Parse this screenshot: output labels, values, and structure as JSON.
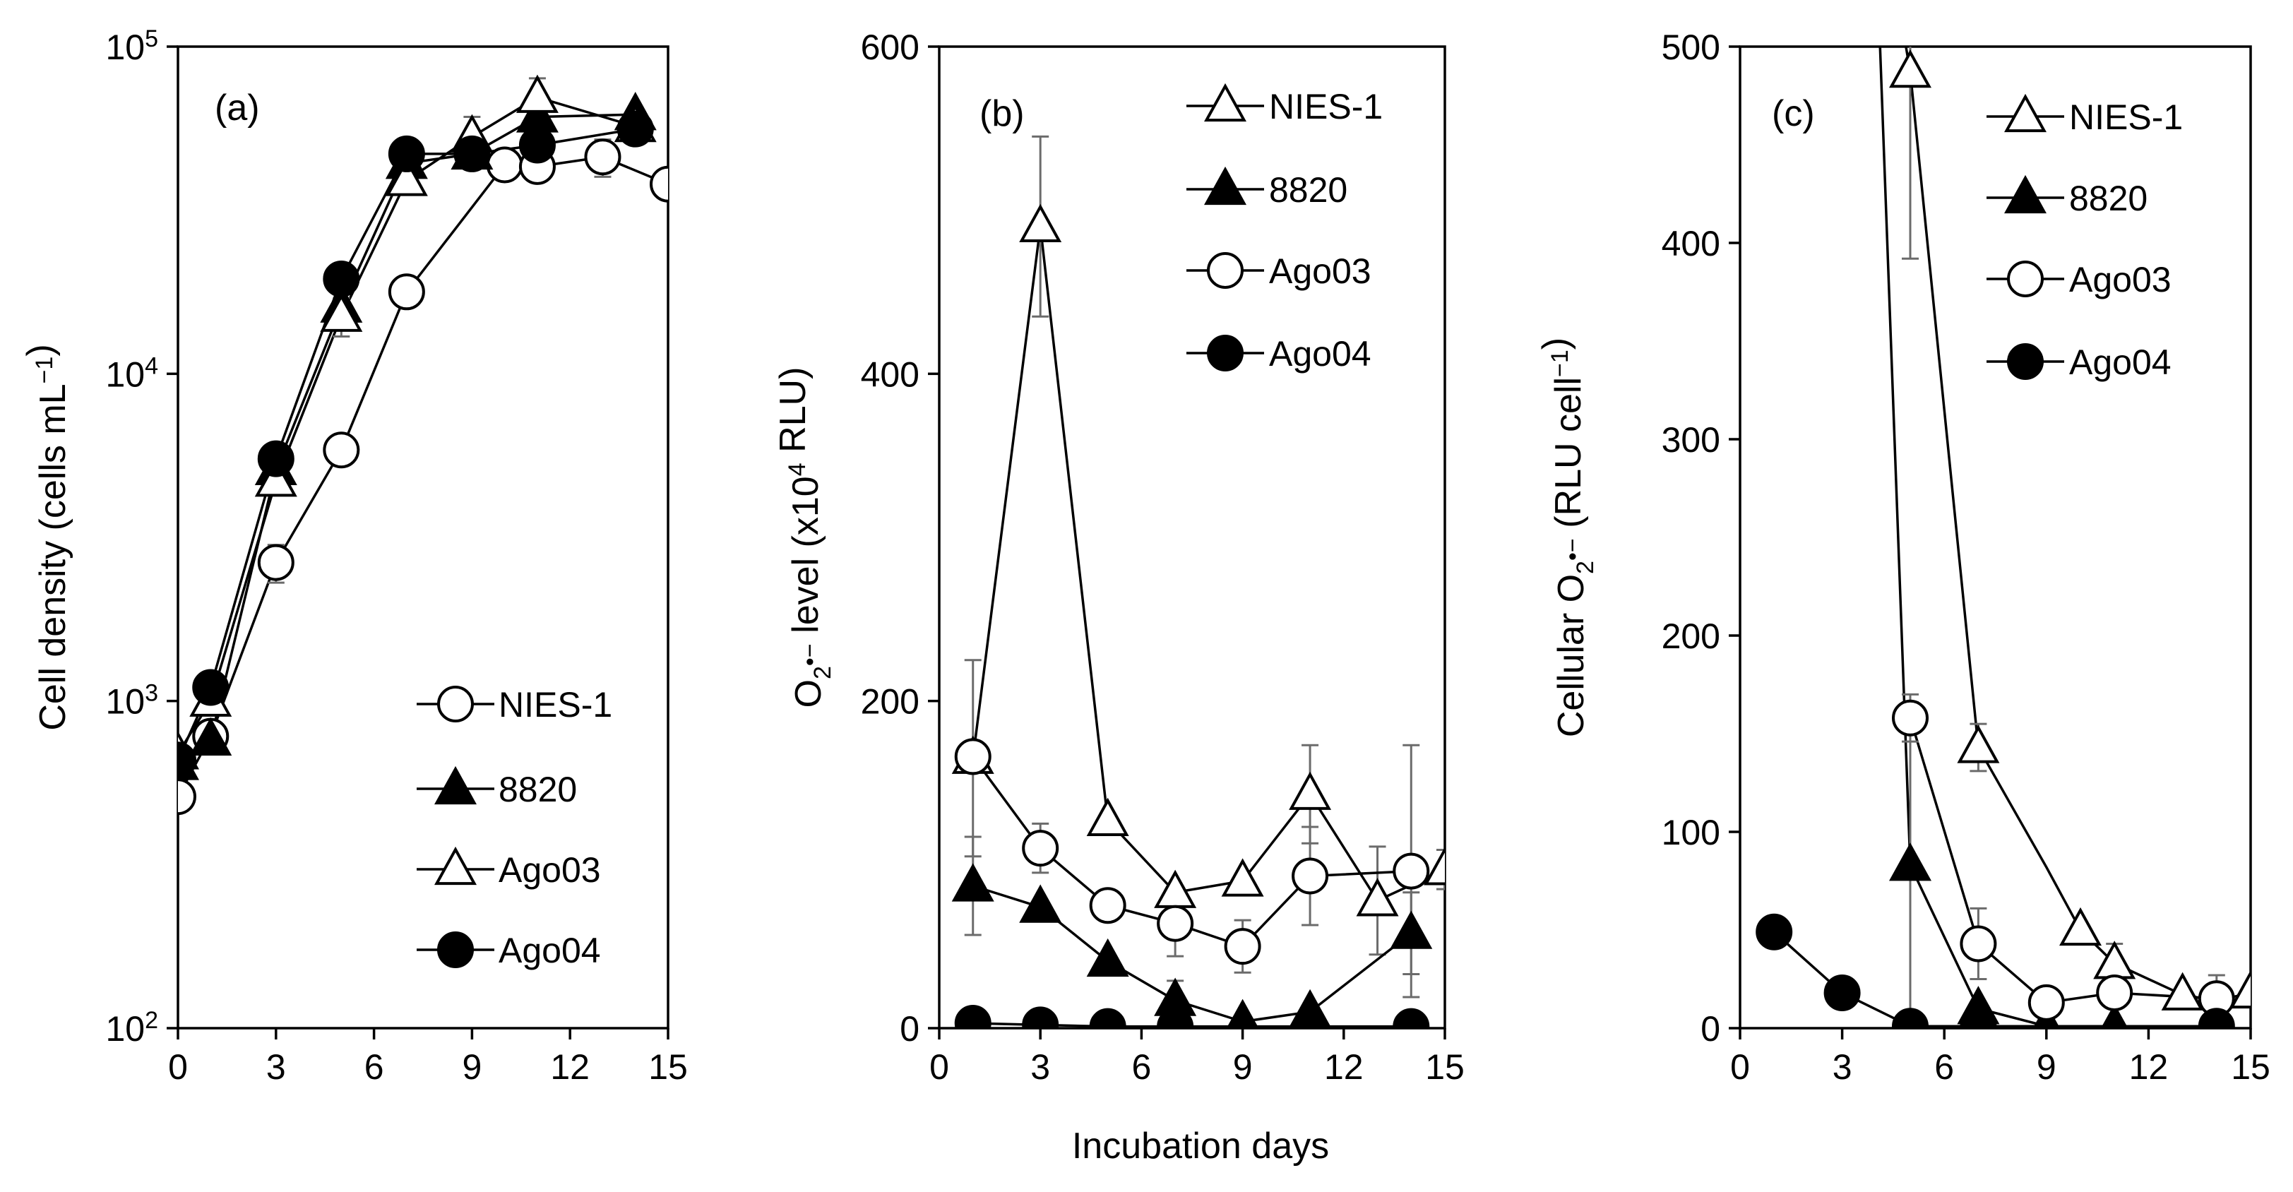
{
  "figure": {
    "shared_xlabel": "Incubation days"
  },
  "chart_data": [
    {
      "type": "line",
      "panel_label": "(a)",
      "yscale": "log",
      "ylim": [
        100,
        100000
      ],
      "xlim": [
        0,
        15
      ],
      "xticks": [
        "0",
        "3",
        "6",
        "9",
        "12",
        "15"
      ],
      "yticks": [
        {
          "base": "10",
          "exp": "2"
        },
        {
          "base": "10",
          "exp": "3"
        },
        {
          "base": "10",
          "exp": "4"
        },
        {
          "base": "10",
          "exp": "5"
        }
      ],
      "ylabel": {
        "text": "Cell density (cells mL",
        "sup": "−1",
        "end": ")"
      },
      "legend": [
        {
          "label": "NIES-1",
          "marker": "circle-open"
        },
        {
          "label": "8820",
          "marker": "triangle-filled"
        },
        {
          "label": "Ago03",
          "marker": "triangle-open"
        },
        {
          "label": "Ago04",
          "marker": "circle-filled"
        }
      ],
      "series": [
        {
          "name": "NIES-1",
          "marker": "circle-open",
          "x": [
            0,
            1,
            3,
            5,
            7,
            10,
            11,
            13,
            15
          ],
          "y": [
            510,
            780,
            2650,
            5850,
            17800,
            43500,
            43000,
            46000,
            38000
          ],
          "err": [
            0,
            0,
            350,
            0,
            0,
            0,
            0,
            6000,
            0
          ]
        },
        {
          "name": "8820",
          "marker": "triangle-filled",
          "x": [
            0,
            1,
            3,
            5,
            7,
            9,
            11,
            14
          ],
          "y": [
            640,
            760,
            5100,
            16000,
            44000,
            47000,
            61000,
            62000
          ],
          "err": [
            0,
            0,
            0,
            0,
            0,
            0,
            0,
            0
          ]
        },
        {
          "name": "Ago03",
          "marker": "triangle-open",
          "x": [
            0,
            1,
            3,
            5,
            7,
            9,
            11,
            14
          ],
          "y": [
            690,
            1000,
            4700,
            15000,
            39000,
            53000,
            70000,
            57000
          ],
          "err": [
            0,
            0,
            0,
            2000,
            0,
            8000,
            10000,
            0
          ]
        },
        {
          "name": "Ago04",
          "marker": "circle-filled",
          "x": [
            0,
            1,
            3,
            5,
            7,
            9,
            11,
            14
          ],
          "y": [
            660,
            1100,
            5500,
            19500,
            47000,
            47000,
            50000,
            56000
          ],
          "err": [
            0,
            0,
            0,
            2000,
            5000,
            0,
            0,
            0
          ]
        }
      ]
    },
    {
      "type": "line",
      "panel_label": "(b)",
      "yscale": "linear",
      "ylim": [
        0,
        600
      ],
      "xlim": [
        0,
        15
      ],
      "xticks": [
        "0",
        "3",
        "6",
        "9",
        "12",
        "15"
      ],
      "yticks": [
        "0",
        "200",
        "400",
        "600"
      ],
      "ylabel": {
        "text": "O",
        "sub": "2",
        "sup": "•−",
        "end": " level (x10",
        "sup2": "4",
        "end2": " RLU)"
      },
      "legend": [
        {
          "label": "NIES-1",
          "marker": "triangle-open"
        },
        {
          "label": "8820",
          "marker": "triangle-filled"
        },
        {
          "label": "Ago03",
          "marker": "circle-open"
        },
        {
          "label": "Ago04",
          "marker": "circle-filled"
        }
      ],
      "series": [
        {
          "name": "NIES-1",
          "marker": "triangle-open",
          "x": [
            1,
            3,
            5,
            7,
            9,
            11,
            13,
            15
          ],
          "y": [
            165,
            490,
            127,
            83,
            90,
            143,
            78,
            97
          ],
          "err": [
            60,
            55,
            0,
            0,
            0,
            30,
            33,
            12
          ]
        },
        {
          "name": "8820",
          "marker": "triangle-filled",
          "x": [
            1,
            3,
            5,
            7,
            9,
            11,
            14
          ],
          "y": [
            87,
            74,
            41,
            17,
            4,
            10,
            58
          ],
          "err": [
            30,
            0,
            0,
            12,
            0,
            0,
            25
          ]
        },
        {
          "name": "Ago03",
          "marker": "circle-open",
          "x": [
            1,
            3,
            5,
            7,
            9,
            11,
            14
          ],
          "y": [
            166,
            110,
            75,
            64,
            50,
            93,
            96
          ],
          "err": [
            0,
            15,
            0,
            20,
            16,
            30,
            77
          ]
        },
        {
          "name": "Ago04",
          "marker": "circle-filled",
          "x": [
            1,
            3,
            5,
            7,
            14
          ],
          "y": [
            3,
            2,
            1,
            1,
            1
          ],
          "err": [
            0,
            0,
            0,
            0,
            0
          ]
        }
      ]
    },
    {
      "type": "line",
      "panel_label": "(c)",
      "yscale": "linear",
      "ylim": [
        0,
        500
      ],
      "xlim": [
        0,
        15
      ],
      "xticks": [
        "0",
        "3",
        "6",
        "9",
        "12",
        "15"
      ],
      "yticks": [
        "0",
        "100",
        "200",
        "300",
        "400",
        "500"
      ],
      "ylabel": {
        "text": "Cellular O",
        "sub": "2",
        "sup": "•−",
        "end": " (RLU cell",
        "sup2": "−1",
        "end2": ")"
      },
      "legend": [
        {
          "label": "NIES-1",
          "marker": "triangle-open"
        },
        {
          "label": "8820",
          "marker": "triangle-filled"
        },
        {
          "label": "Ago03",
          "marker": "circle-open"
        },
        {
          "label": "Ago04",
          "marker": "circle-filled"
        }
      ],
      "series": [
        {
          "name": "NIES-1",
          "marker": "triangle-open",
          "x": [
            3.9,
            5,
            7,
            9,
            10,
            11,
            13,
            14,
            15
          ],
          "y": [
            600,
            487,
            143,
            82,
            50,
            33,
            17,
            14,
            18
          ],
          "err": [
            0,
            95,
            12,
            0,
            0,
            10,
            0,
            0,
            0
          ],
          "hidden": [
            true,
            false,
            false,
            true,
            false,
            false,
            false,
            true,
            false
          ]
        },
        {
          "name": "8820",
          "marker": "triangle-filled",
          "x": [
            3.9,
            5,
            7,
            9,
            11,
            14
          ],
          "y": [
            600,
            83,
            10,
            1,
            1,
            1
          ],
          "err": [
            0,
            83,
            0,
            0,
            0,
            0
          ],
          "hidden": [
            true,
            false,
            false,
            false,
            false,
            false
          ]
        },
        {
          "name": "Ago03",
          "marker": "circle-open",
          "x": [
            5,
            7,
            9,
            11,
            14
          ],
          "y": [
            158,
            43,
            13,
            18,
            15
          ],
          "err": [
            12,
            18,
            0,
            0,
            12
          ],
          "hidden": [
            false,
            false,
            false,
            false,
            false
          ]
        },
        {
          "name": "Ago04",
          "marker": "circle-filled",
          "x": [
            1,
            3,
            5,
            7,
            14
          ],
          "y": [
            49,
            18,
            1,
            1,
            1
          ],
          "err": [
            0,
            0,
            0,
            0,
            0
          ],
          "hidden": [
            false,
            false,
            false,
            false,
            false
          ]
        }
      ]
    }
  ]
}
